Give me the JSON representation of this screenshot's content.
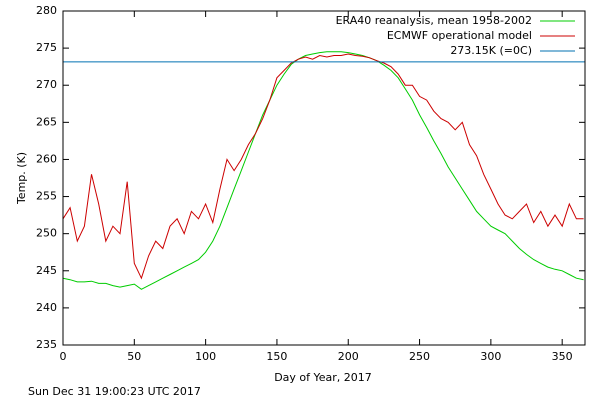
{
  "chart_data": {
    "type": "line",
    "xlabel": "Day of Year, 2017",
    "ylabel": "Temp. (K)",
    "footer": "Sun Dec 31 19:00:23 UTC 2017",
    "legend": "upper right",
    "xlim": [
      0,
      366
    ],
    "ylim": [
      235,
      280
    ],
    "xticks": [
      0,
      50,
      100,
      150,
      200,
      250,
      300,
      350
    ],
    "yticks": [
      235,
      240,
      245,
      250,
      255,
      260,
      265,
      270,
      275,
      280
    ],
    "x": [
      0,
      5,
      10,
      15,
      20,
      25,
      30,
      35,
      40,
      45,
      50,
      55,
      60,
      65,
      70,
      75,
      80,
      85,
      90,
      95,
      100,
      105,
      110,
      115,
      120,
      125,
      130,
      135,
      140,
      145,
      150,
      155,
      160,
      165,
      170,
      175,
      180,
      185,
      190,
      195,
      200,
      205,
      210,
      215,
      220,
      225,
      230,
      235,
      240,
      245,
      250,
      255,
      260,
      265,
      270,
      275,
      280,
      285,
      290,
      295,
      300,
      305,
      310,
      315,
      320,
      325,
      330,
      335,
      340,
      345,
      350,
      355,
      360,
      365
    ],
    "series": [
      {
        "name": "ERA40 reanalysis, mean 1958-2002",
        "color": "#00cc00",
        "values": [
          244,
          243.8,
          243.5,
          243.5,
          243.6,
          243.3,
          243.3,
          243,
          242.8,
          243,
          243.2,
          242.5,
          243,
          243.5,
          244,
          244.5,
          245,
          245.5,
          246,
          246.5,
          247.5,
          249,
          251,
          253.5,
          256,
          258.5,
          261,
          263.5,
          266,
          268,
          270,
          271.5,
          272.8,
          273.5,
          274,
          274.2,
          274.4,
          274.5,
          274.5,
          274.5,
          274.4,
          274.2,
          274,
          273.7,
          273.3,
          272.7,
          272,
          271,
          269.5,
          268,
          266,
          264.3,
          262.5,
          260.8,
          259,
          257.5,
          256,
          254.5,
          253,
          252,
          251,
          250.5,
          250,
          249,
          248,
          247.2,
          246.5,
          246,
          245.5,
          245.2,
          245,
          244.5,
          244,
          243.8
        ]
      },
      {
        "name": "ECMWF operational model",
        "color": "#cc0000",
        "values": [
          252,
          253.5,
          249,
          251,
          258,
          254,
          249,
          251,
          250,
          257,
          246,
          244,
          247,
          249,
          248,
          251,
          252,
          250,
          253,
          252,
          254,
          251.5,
          256,
          260,
          258.5,
          260,
          262,
          263.5,
          265.5,
          268,
          271,
          272,
          273,
          273.5,
          273.8,
          273.5,
          274,
          273.8,
          274,
          274,
          274.2,
          274,
          273.9,
          273.7,
          273.3,
          273,
          272.5,
          271.5,
          270,
          270,
          268.5,
          268,
          266.5,
          265.5,
          265,
          264,
          265,
          262,
          260.5,
          258,
          256,
          254,
          252.5,
          252,
          253,
          254,
          251.5,
          253,
          251,
          252.5,
          251,
          254,
          252,
          252
        ]
      }
    ],
    "reference_line": {
      "name": "273.15K (=0C)",
      "value": 273.15,
      "color": "#0072b2"
    }
  }
}
